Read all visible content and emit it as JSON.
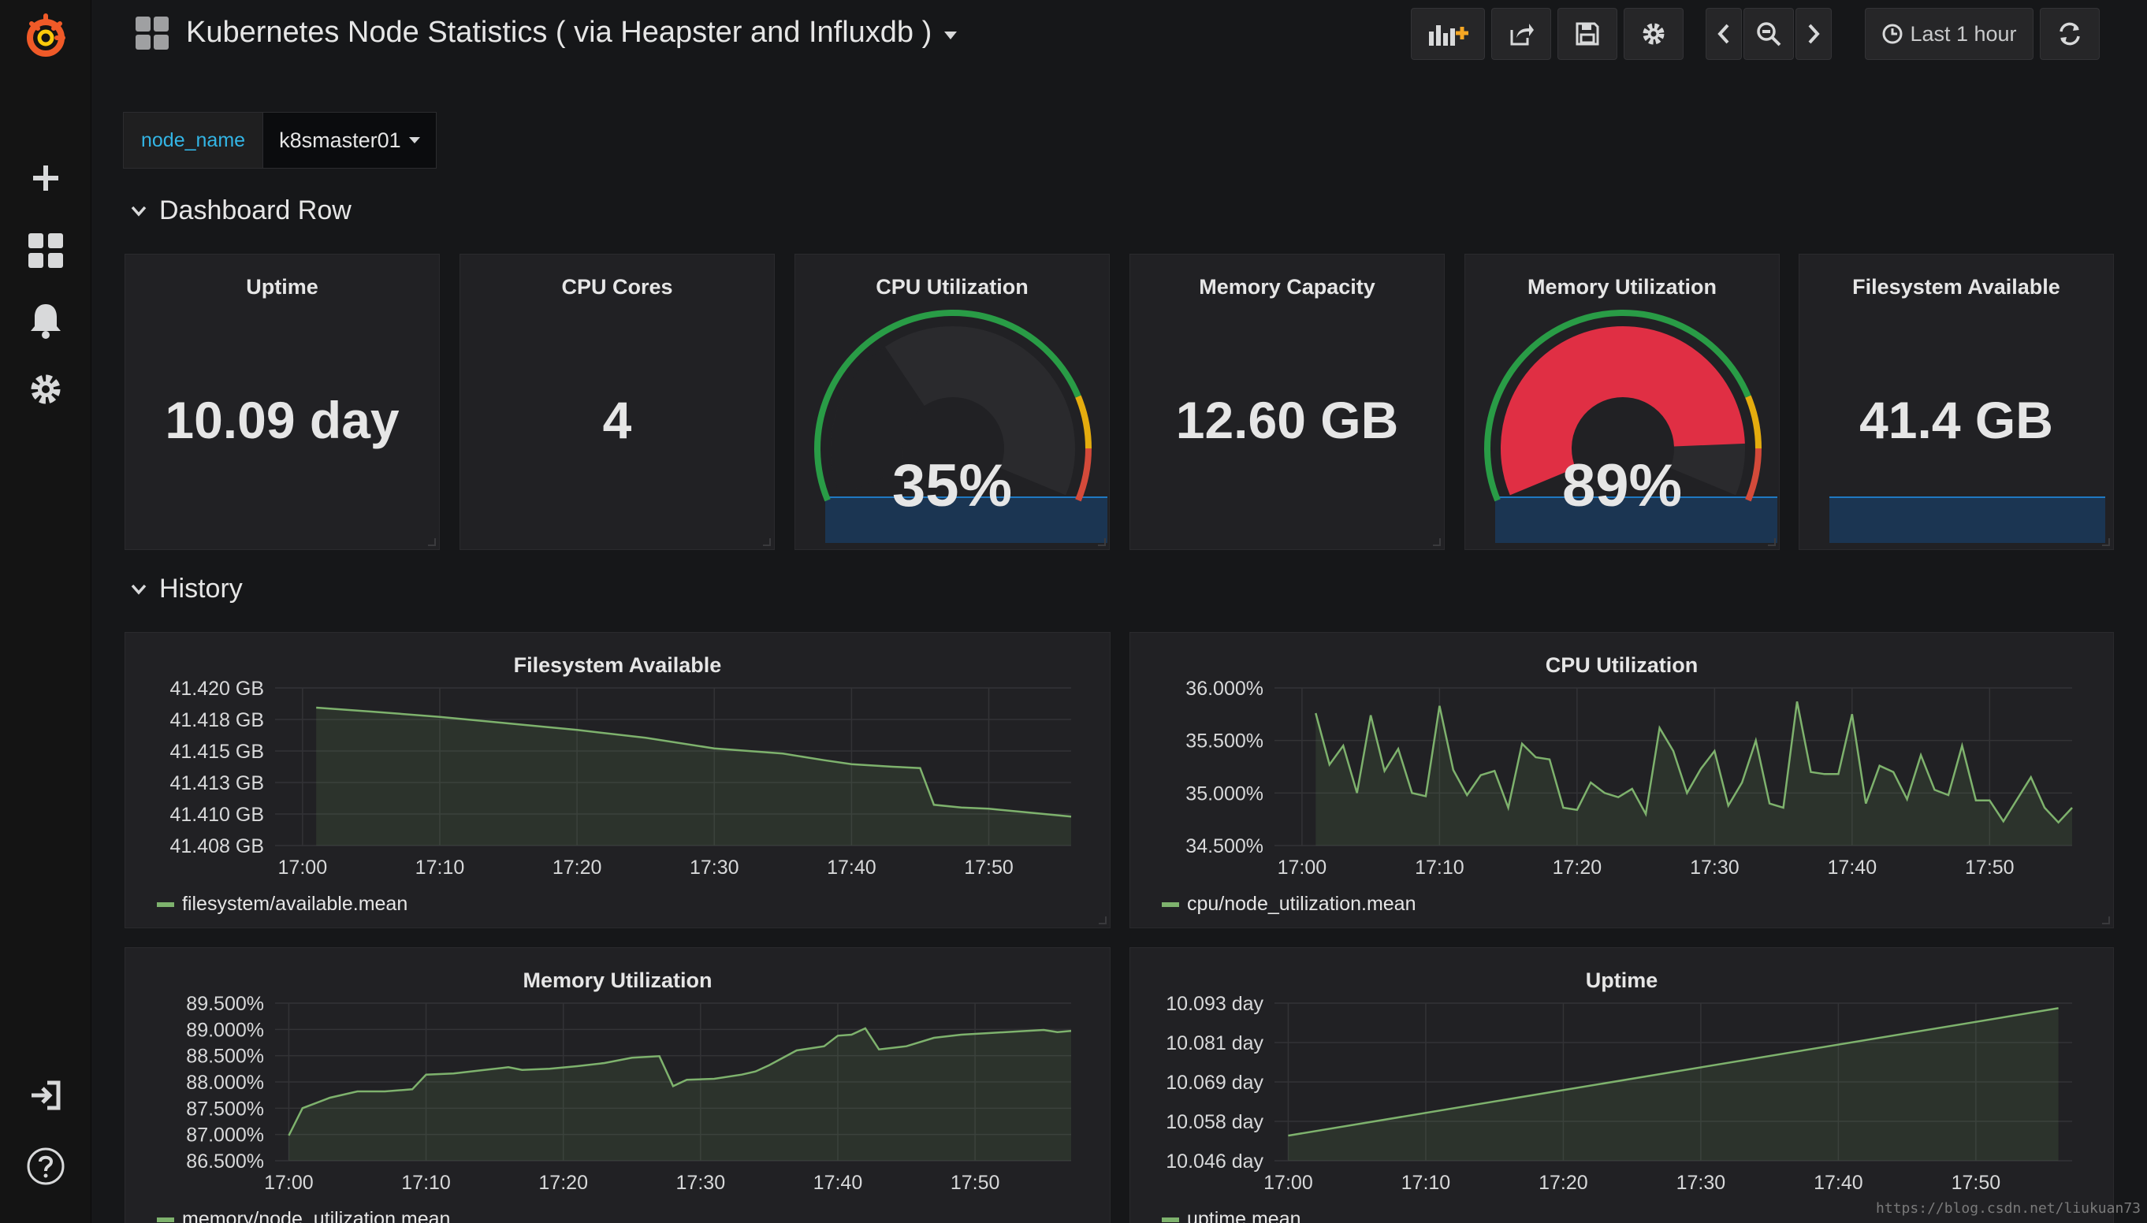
{
  "app": {
    "dashboard_title": "Kubernetes Node Statistics ( via Heapster and Influxdb )",
    "time_range_label": "Last 1 hour",
    "brand_color": "#f05a28"
  },
  "sidebar": {
    "items": [
      {
        "name": "grafana-logo-icon"
      },
      {
        "name": "create-plus-icon"
      },
      {
        "name": "dashboards-icon"
      },
      {
        "name": "alerting-bell-icon"
      },
      {
        "name": "configuration-gear-icon"
      },
      {
        "name": "sign-in-icon"
      },
      {
        "name": "help-icon"
      }
    ]
  },
  "variables": {
    "label": "node_name",
    "value": "k8smaster01"
  },
  "rows": {
    "dashboard_row": "Dashboard Row",
    "history": "History"
  },
  "stats": {
    "uptime": {
      "title": "Uptime",
      "value": "10.09 day"
    },
    "cpu_cores": {
      "title": "CPU Cores",
      "value": "4"
    },
    "cpu_util": {
      "title": "CPU Utilization",
      "value": "35%",
      "percent": 35
    },
    "mem_capacity": {
      "title": "Memory Capacity",
      "value": "12.60 GB"
    },
    "mem_util": {
      "title": "Memory Utilization",
      "value": "89%",
      "percent": 89
    },
    "fs_available": {
      "title": "Filesystem Available",
      "value": "41.4 GB"
    }
  },
  "colors": {
    "series_green": "#7eb26d",
    "gauge_green": "#299c46",
    "gauge_orange": "#e5ac0e",
    "gauge_red": "#d44a3a",
    "gauge_fill_red": "#e02f44",
    "sparkline_blue": "#1f78c1"
  },
  "chart_data": [
    {
      "type": "area",
      "title": "Filesystem Available",
      "x_ticks": [
        "17:00",
        "17:10",
        "17:20",
        "17:30",
        "17:40",
        "17:50"
      ],
      "y_ticks": [
        "41.420 GB",
        "41.418 GB",
        "41.415 GB",
        "41.413 GB",
        "41.410 GB",
        "41.408 GB"
      ],
      "ylim": [
        41.408,
        41.42
      ],
      "xlim": [
        "16:58",
        "17:56"
      ],
      "series": [
        {
          "name": "filesystem/available.mean",
          "x": [
            "17:01",
            "17:05",
            "17:10",
            "17:15",
            "17:20",
            "17:25",
            "17:30",
            "17:35",
            "17:38",
            "17:40",
            "17:43",
            "17:45",
            "17:46",
            "17:48",
            "17:50",
            "17:53",
            "17:56"
          ],
          "values": [
            41.4185,
            41.4182,
            41.4178,
            41.4173,
            41.4168,
            41.4162,
            41.4154,
            41.415,
            41.4145,
            41.4142,
            41.414,
            41.4139,
            41.4111,
            41.4109,
            41.4108,
            41.4105,
            41.4102
          ]
        }
      ]
    },
    {
      "type": "area",
      "title": "CPU Utilization",
      "x_ticks": [
        "17:00",
        "17:10",
        "17:20",
        "17:30",
        "17:40",
        "17:50"
      ],
      "y_ticks": [
        "36.000%",
        "35.500%",
        "35.000%",
        "34.500%"
      ],
      "ylim": [
        34.5,
        36.0
      ],
      "xlim": [
        "16:58",
        "17:56"
      ],
      "series": [
        {
          "name": "cpu/node_utilization.mean",
          "x": [
            "17:01",
            "17:02",
            "17:03",
            "17:04",
            "17:05",
            "17:06",
            "17:07",
            "17:08",
            "17:09",
            "17:10",
            "17:11",
            "17:12",
            "17:13",
            "17:14",
            "17:15",
            "17:16",
            "17:17",
            "17:18",
            "17:19",
            "17:20",
            "17:21",
            "17:22",
            "17:23",
            "17:24",
            "17:25",
            "17:26",
            "17:27",
            "17:28",
            "17:29",
            "17:30",
            "17:31",
            "17:32",
            "17:33",
            "17:34",
            "17:35",
            "17:36",
            "17:37",
            "17:38",
            "17:39",
            "17:40",
            "17:41",
            "17:42",
            "17:43",
            "17:44",
            "17:45",
            "17:46",
            "17:47",
            "17:48",
            "17:49",
            "17:50",
            "17:51",
            "17:52",
            "17:53",
            "17:54",
            "17:55",
            "17:56"
          ],
          "values": [
            35.76,
            35.27,
            35.45,
            35.0,
            35.74,
            35.21,
            35.42,
            35.0,
            34.97,
            35.83,
            35.22,
            34.98,
            35.17,
            35.21,
            34.86,
            35.47,
            35.34,
            35.32,
            34.86,
            34.84,
            35.1,
            35.0,
            34.96,
            35.04,
            34.8,
            35.62,
            35.4,
            35.0,
            35.23,
            35.4,
            34.88,
            35.1,
            35.5,
            34.9,
            34.86,
            35.87,
            35.2,
            35.18,
            35.18,
            35.75,
            34.9,
            35.26,
            35.2,
            34.94,
            35.36,
            35.03,
            34.98,
            35.45,
            34.93,
            34.93,
            34.73,
            34.94,
            35.15,
            34.86,
            34.72,
            34.86
          ]
        }
      ]
    },
    {
      "type": "area",
      "title": "Memory Utilization",
      "x_ticks": [
        "17:00",
        "17:10",
        "17:20",
        "17:30",
        "17:40",
        "17:50"
      ],
      "y_ticks": [
        "89.500%",
        "89.000%",
        "88.500%",
        "88.000%",
        "87.500%",
        "87.000%",
        "86.500%"
      ],
      "ylim": [
        86.5,
        89.5
      ],
      "xlim": [
        "16:59",
        "17:57"
      ],
      "series": [
        {
          "name": "memory/node_utilization.mean",
          "x": [
            "17:00",
            "17:01",
            "17:03",
            "17:05",
            "17:07",
            "17:09",
            "17:10",
            "17:12",
            "17:14",
            "17:16",
            "17:17",
            "17:19",
            "17:21",
            "17:23",
            "17:25",
            "17:27",
            "17:28",
            "17:29",
            "17:31",
            "17:33",
            "17:34",
            "17:35",
            "17:37",
            "17:39",
            "17:40",
            "17:41",
            "17:42",
            "17:43",
            "17:45",
            "17:47",
            "17:49",
            "17:51",
            "17:53",
            "17:55",
            "17:56",
            "17:57"
          ],
          "values": [
            86.98,
            87.5,
            87.7,
            87.82,
            87.82,
            87.86,
            88.14,
            88.16,
            88.22,
            88.28,
            88.23,
            88.25,
            88.3,
            88.36,
            88.46,
            88.49,
            87.92,
            88.04,
            88.06,
            88.14,
            88.2,
            88.32,
            88.6,
            88.68,
            88.88,
            88.9,
            89.02,
            88.62,
            88.68,
            88.84,
            88.9,
            88.93,
            88.96,
            88.99,
            88.95,
            88.97
          ]
        }
      ]
    },
    {
      "type": "area",
      "title": "Uptime",
      "x_ticks": [
        "17:00",
        "17:10",
        "17:20",
        "17:30",
        "17:40",
        "17:50"
      ],
      "y_ticks": [
        "10.093 day",
        "10.081 day",
        "10.069 day",
        "10.058 day",
        "10.046 day"
      ],
      "ylim": [
        10.046,
        10.093
      ],
      "xlim": [
        "16:59",
        "17:57"
      ],
      "series": [
        {
          "name": "uptime.mean",
          "x": [
            "17:00",
            "17:56"
          ],
          "values": [
            10.0535,
            10.0915
          ]
        }
      ]
    }
  ],
  "watermark": "https://blog.csdn.net/liukuan73"
}
